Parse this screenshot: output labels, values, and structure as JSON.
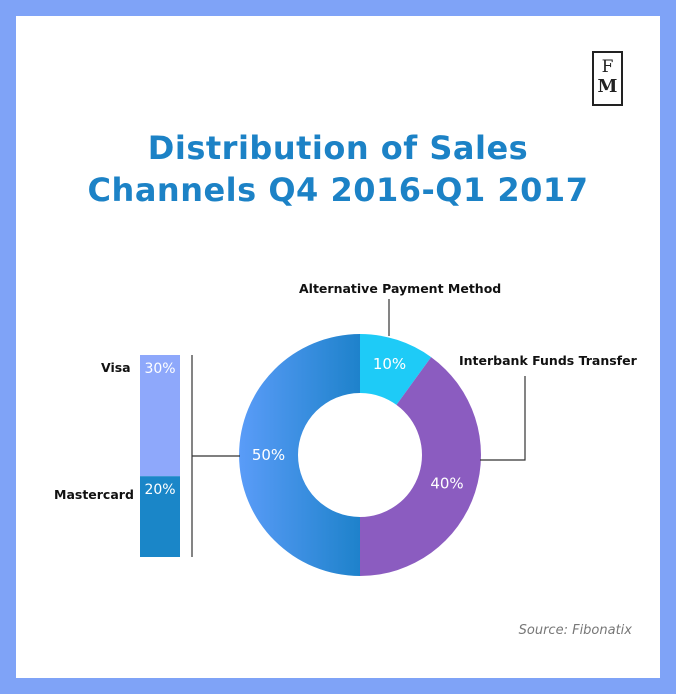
{
  "logo_text": "FM",
  "logo": {
    "top": "F",
    "bottom": "M"
  },
  "chart_data": {
    "type": "pie",
    "title": "Distribution of Sales Channels Q4 2016-Q1 2017",
    "title_lines": [
      "Distribution of Sales",
      "Channels Q4 2016-Q1 2017"
    ],
    "donut": [
      {
        "label": "Alternative Payment Method",
        "value": 10,
        "text": "10%",
        "color": "#1ecbf7"
      },
      {
        "label": "Interbank Funds Transfer",
        "value": 40,
        "text": "40%",
        "color": "#8b5cc0"
      },
      {
        "label": "",
        "value": 50,
        "text": "50%",
        "color": "#3f8ff0"
      }
    ],
    "breakdown": {
      "of": "50%",
      "items": [
        {
          "label": "Visa",
          "value": 30,
          "text": "30%",
          "color": "#8ea8fb"
        },
        {
          "label": "Mastercard",
          "value": 20,
          "text": "20%",
          "color": "#1a86c8"
        }
      ]
    },
    "source": "Source: Fibonatix"
  }
}
